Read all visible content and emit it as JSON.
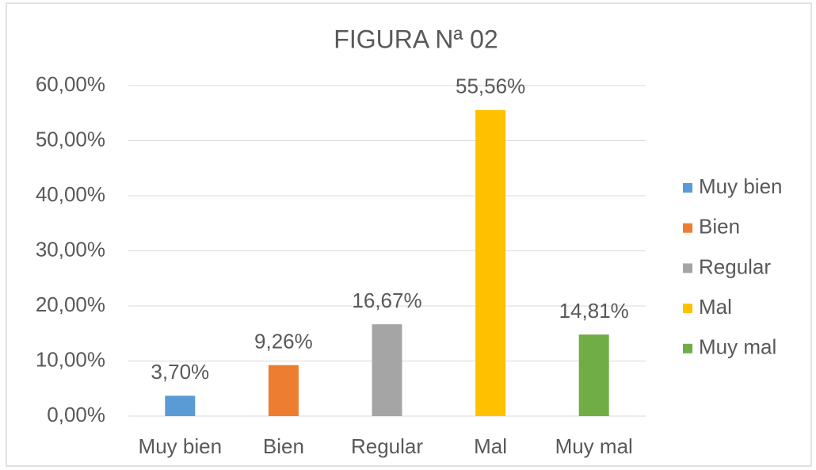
{
  "chart_data": {
    "type": "bar",
    "title": "FIGURA Nª 02",
    "categories": [
      "Muy bien",
      "Bien",
      "Regular",
      "Mal",
      "Muy mal"
    ],
    "values": [
      3.7,
      9.26,
      16.67,
      55.56,
      14.81
    ],
    "value_labels": [
      "3,70%",
      "9,26%",
      "16,67%",
      "55,56%",
      "14,81%"
    ],
    "colors": [
      "#5b9bd5",
      "#ed7d31",
      "#a5a5a5",
      "#ffc000",
      "#70ad47"
    ],
    "ylim": [
      0,
      60
    ],
    "yticks": [
      {
        "value": 0,
        "label": "0,00%"
      },
      {
        "value": 10,
        "label": "10,00%"
      },
      {
        "value": 20,
        "label": "20,00%"
      },
      {
        "value": 30,
        "label": "30,00%"
      },
      {
        "value": 40,
        "label": "40,00%"
      },
      {
        "value": 50,
        "label": "50,00%"
      },
      {
        "value": 60,
        "label": "60,00%"
      }
    ],
    "grid": true,
    "legend": "right"
  }
}
